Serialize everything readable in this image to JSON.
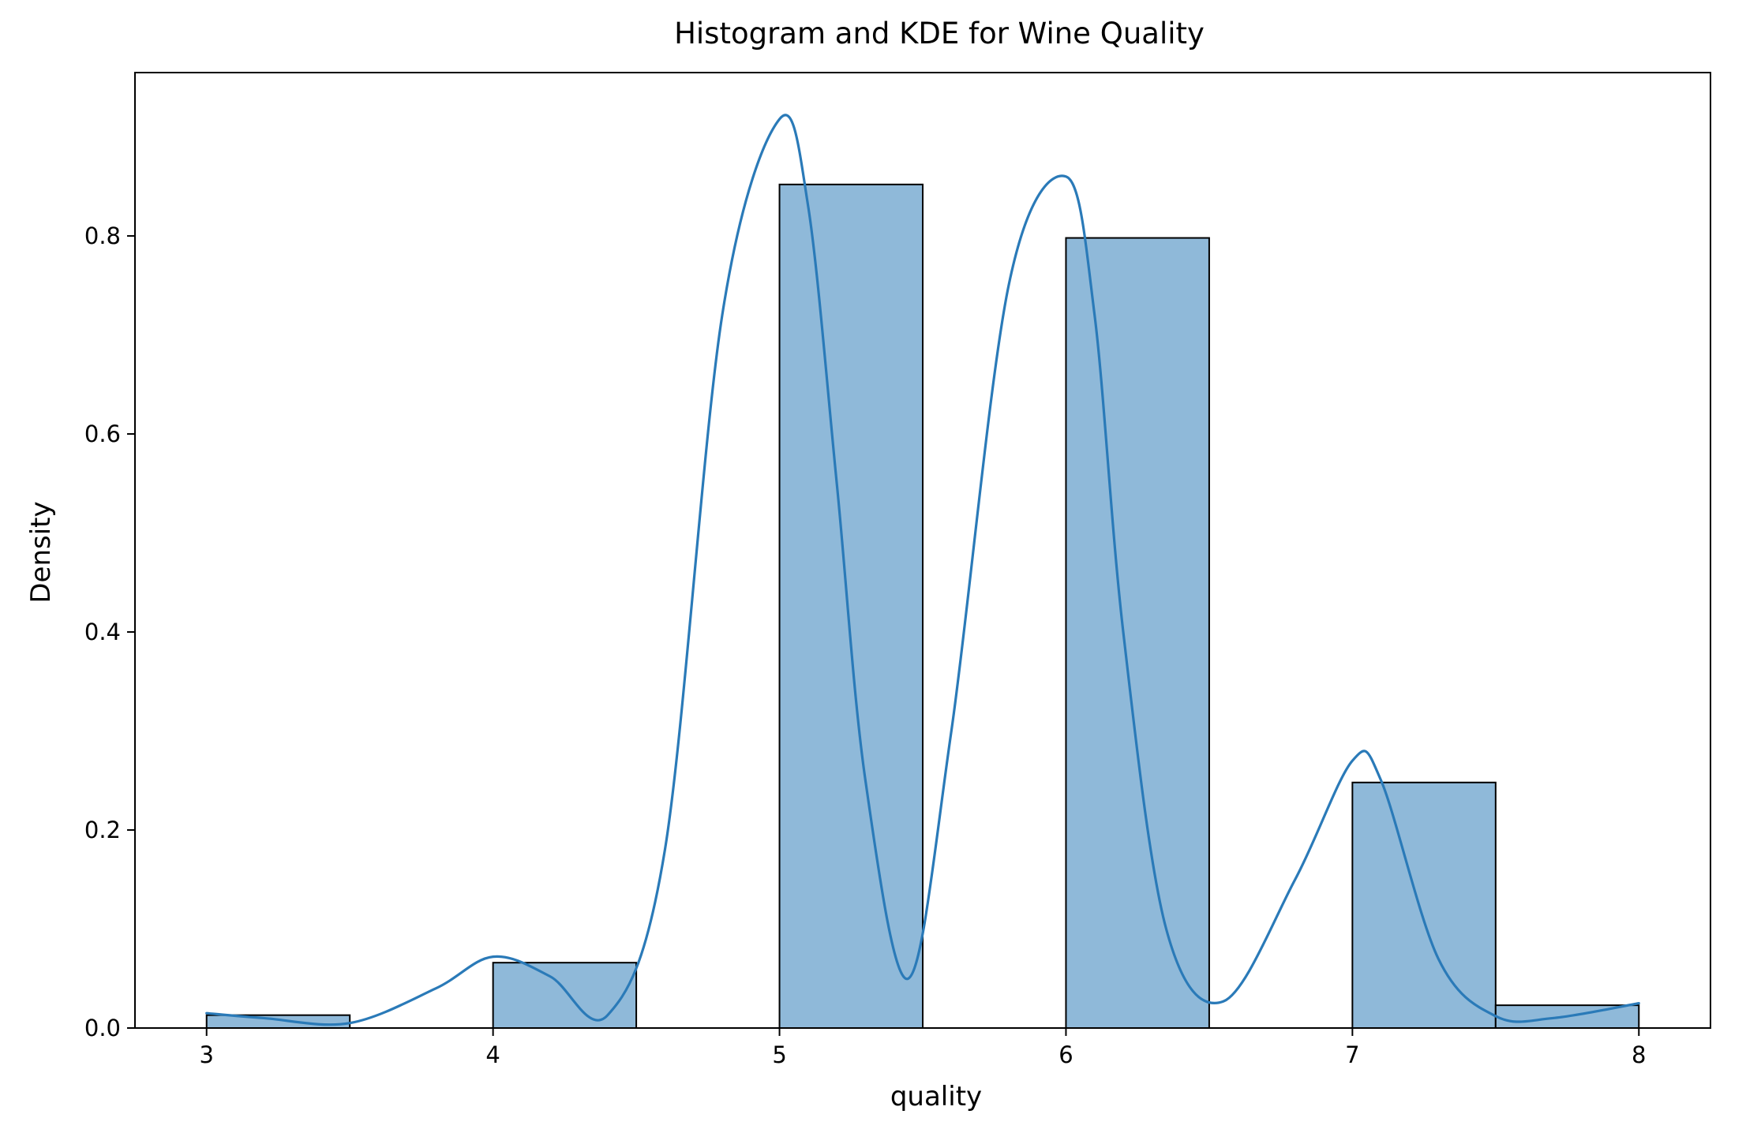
{
  "chart_data": {
    "type": "bar",
    "title": "Histogram and KDE for Wine Quality",
    "xlabel": "quality",
    "ylabel": "Density",
    "xlim": [
      2.75,
      8.25
    ],
    "ylim": [
      0.0,
      0.965
    ],
    "x_ticks": [
      3,
      4,
      5,
      6,
      7,
      8
    ],
    "x_tick_labels": [
      "3",
      "4",
      "5",
      "6",
      "7",
      "8"
    ],
    "y_ticks": [
      0.0,
      0.2,
      0.4,
      0.6,
      0.8
    ],
    "y_tick_labels": [
      "0.0",
      "0.2",
      "0.4",
      "0.6",
      "0.8"
    ],
    "grid": false,
    "colors": {
      "bar_fill": "#8fb9d9",
      "bar_edge": "#000000",
      "kde_line": "#2a7ab8"
    },
    "histogram": {
      "bins": [
        {
          "x0": 3.0,
          "x1": 3.5,
          "density": 0.013
        },
        {
          "x0": 3.5,
          "x1": 4.0,
          "density": 0.0
        },
        {
          "x0": 4.0,
          "x1": 4.5,
          "density": 0.066
        },
        {
          "x0": 4.5,
          "x1": 5.0,
          "density": 0.0
        },
        {
          "x0": 5.0,
          "x1": 5.5,
          "density": 0.852
        },
        {
          "x0": 5.5,
          "x1": 6.0,
          "density": 0.0
        },
        {
          "x0": 6.0,
          "x1": 6.5,
          "density": 0.798
        },
        {
          "x0": 6.5,
          "x1": 7.0,
          "density": 0.0
        },
        {
          "x0": 7.0,
          "x1": 7.5,
          "density": 0.248
        },
        {
          "x0": 7.5,
          "x1": 8.0,
          "density": 0.023
        }
      ]
    },
    "kde": {
      "x": [
        3.0,
        3.2,
        3.5,
        3.8,
        4.0,
        4.2,
        4.4,
        4.6,
        4.8,
        5.0,
        5.1,
        5.2,
        5.3,
        5.45,
        5.6,
        5.8,
        6.0,
        6.1,
        6.2,
        6.35,
        6.55,
        6.8,
        7.0,
        7.1,
        7.3,
        7.5,
        7.7,
        8.0
      ],
      "y": [
        0.015,
        0.01,
        0.005,
        0.04,
        0.072,
        0.052,
        0.013,
        0.18,
        0.72,
        0.918,
        0.83,
        0.55,
        0.25,
        0.05,
        0.3,
        0.75,
        0.86,
        0.72,
        0.4,
        0.1,
        0.027,
        0.15,
        0.27,
        0.25,
        0.07,
        0.012,
        0.01,
        0.025
      ]
    }
  }
}
